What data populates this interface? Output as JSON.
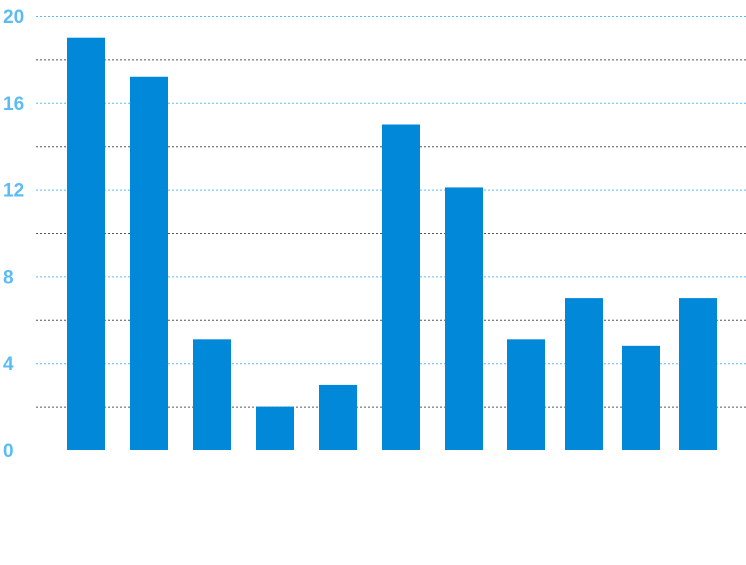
{
  "chart_data": {
    "type": "bar",
    "title": "",
    "xlabel": "",
    "ylabel": "",
    "categories": [
      "",
      "",
      "",
      "",
      "",
      "",
      "",
      "",
      "",
      "",
      ""
    ],
    "values": [
      19,
      17.2,
      5.1,
      2,
      3,
      15,
      12.1,
      5.1,
      7,
      4.8,
      7
    ],
    "ylim": [
      0,
      20
    ],
    "y_ticks": [
      {
        "value": 0,
        "label": "0"
      },
      {
        "value": 4,
        "label": "4"
      },
      {
        "value": 8,
        "label": "8"
      },
      {
        "value": 12,
        "label": "12"
      },
      {
        "value": 16,
        "label": "16"
      },
      {
        "value": 20,
        "label": "20"
      }
    ],
    "minor_grid_values": [
      2,
      6,
      10,
      14,
      18
    ],
    "grid": true,
    "legend": "none",
    "colors": {
      "bar": "#0288d9",
      "tick_label": "#5bbcf4",
      "major_grid": "#5bbcf4",
      "minor_grid": "#555555"
    }
  }
}
